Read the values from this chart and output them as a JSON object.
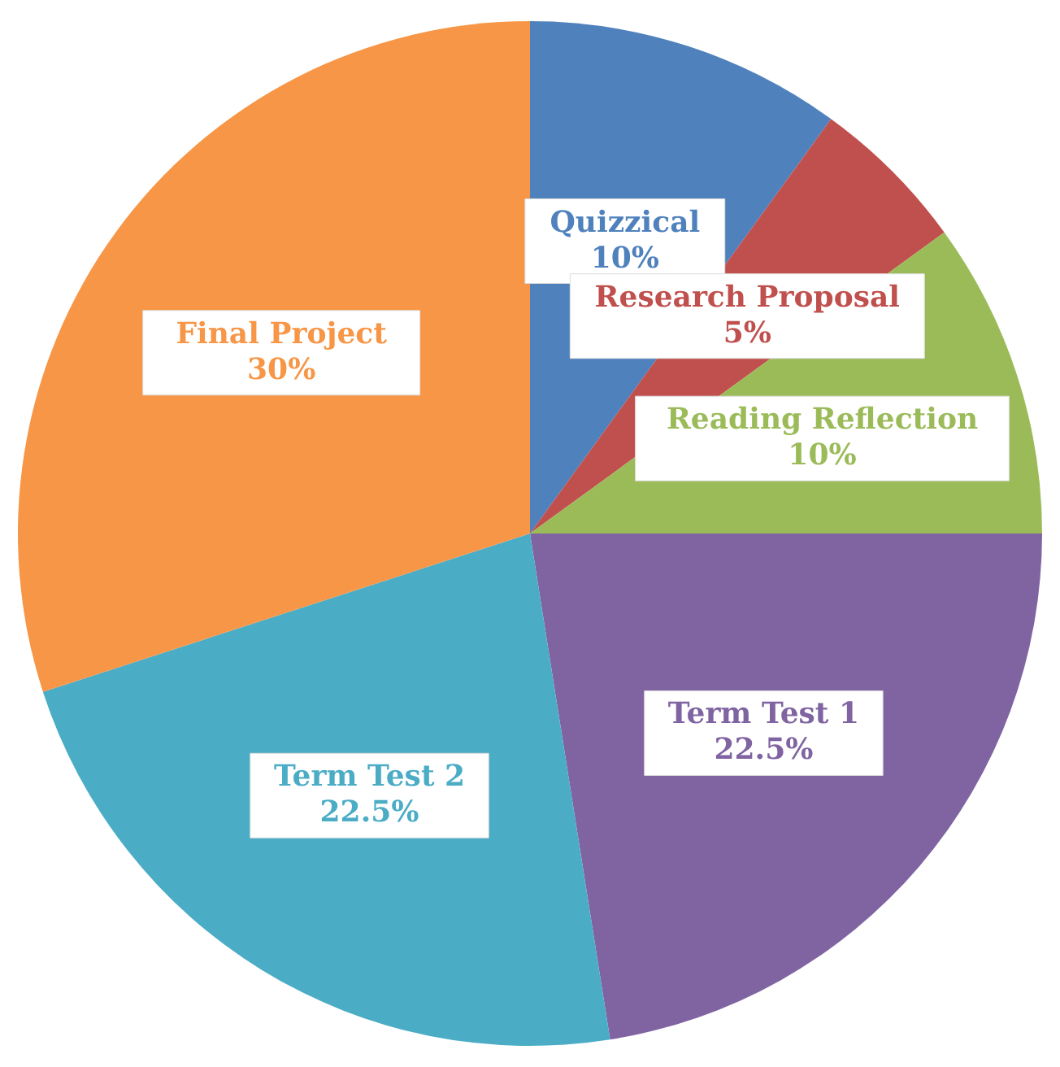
{
  "chart_data": {
    "type": "pie",
    "categories": [
      "Quizzical",
      "Research Proposal",
      "Reading Reflection",
      "Term Test 1",
      "Term Test 2",
      "Final Project"
    ],
    "values": [
      10,
      5,
      10,
      22.5,
      22.5,
      30
    ],
    "value_labels": [
      "10%",
      "5%",
      "10%",
      "22.5%",
      "22.5%",
      "30%"
    ],
    "colors": [
      "#4f81bd",
      "#c0504d",
      "#9bbb59",
      "#8064a2",
      "#4bacc6",
      "#f79646"
    ],
    "legend": false
  }
}
